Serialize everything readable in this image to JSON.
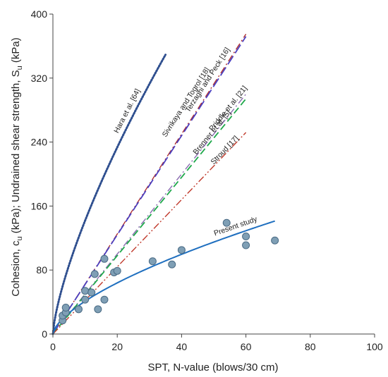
{
  "chart_data": {
    "type": "scatter",
    "xlabel": "SPT, N-value (blows/30 cm)",
    "ylabel_parts": [
      "Cohesion, c",
      "u",
      " (kPa); Undrained shear strength, S",
      "u",
      " (kPa)"
    ],
    "xlim": [
      0,
      100
    ],
    "ylim": [
      0,
      400
    ],
    "xticks": [
      0,
      20,
      40,
      60,
      80,
      100
    ],
    "yticks": [
      0,
      80,
      160,
      240,
      320,
      400
    ],
    "grid": false,
    "scatter_points": {
      "color": "#7f9fb5",
      "x": [
        3,
        3,
        4,
        4,
        8,
        10,
        10,
        12,
        13,
        14,
        16,
        16,
        19,
        20,
        31,
        37,
        40,
        54,
        60,
        60,
        69
      ],
      "y": [
        17,
        23,
        27,
        33,
        31,
        54,
        43,
        52,
        75,
        31,
        43,
        94,
        77,
        79,
        91,
        87,
        105,
        139,
        122,
        111,
        117
      ]
    },
    "series": [
      {
        "name": "Hara et al. [64]",
        "style": "dotted",
        "color": "#2f4f8f",
        "coef": 27,
        "exp": 0.72,
        "x_end": 35
      },
      {
        "name": "Sivrikaya and Togrol [18]",
        "style": "dashdot",
        "color": "#b03030",
        "coef": 6.25,
        "exp": 1.0,
        "x_end": 60
      },
      {
        "name": "Terzaghi and Peck [16]",
        "style": "longdash",
        "color": "#4b3fbf",
        "coef": 6.2,
        "exp": 1.0,
        "x_end": 60
      },
      {
        "name": "Priddle et al. [21]",
        "style": "dashdot",
        "color": "#8a6bb0",
        "coef": 5.0,
        "exp": 1.0,
        "x_end": 60
      },
      {
        "name": "Brenner et al. [5]",
        "style": "dashed",
        "color": "#1ea84a",
        "coef": 4.9,
        "exp": 1.0,
        "x_end": 60
      },
      {
        "name": "Stroud [17]",
        "style": "dashdotdot",
        "color": "#c0392b",
        "coef": 4.2,
        "exp": 1.0,
        "x_end": 60
      },
      {
        "name": "Present study",
        "style": "solid",
        "color": "#1f6fbf",
        "coef": 9.4,
        "exp": 0.64,
        "x_end": 69
      }
    ]
  }
}
